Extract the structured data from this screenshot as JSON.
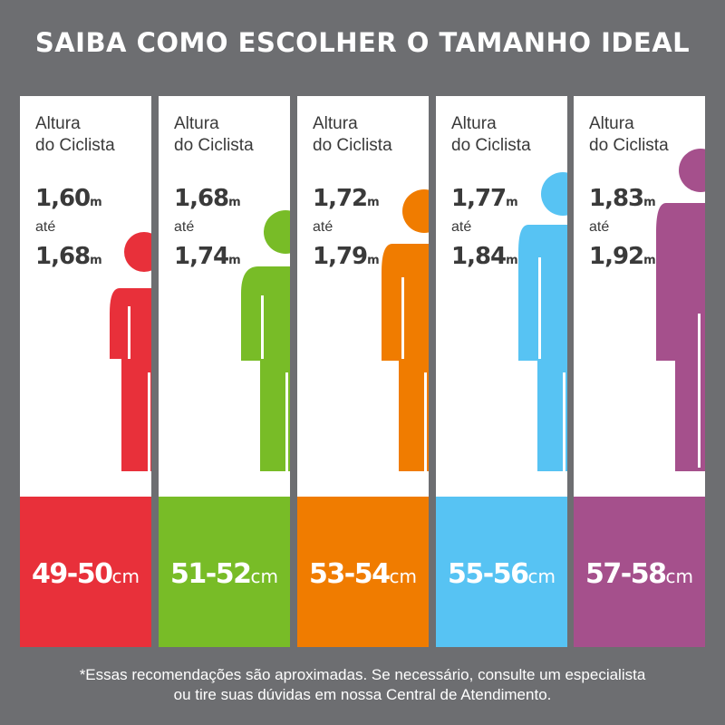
{
  "title": "SAIBA COMO ESCOLHER O TAMANHO IDEAL",
  "label_line1": "Altura",
  "label_line2": "do Ciclista",
  "cards": [
    {
      "min": "1,60",
      "max": "1,68",
      "unit": "m",
      "between": "até",
      "size": "49-50",
      "size_unit": "cm",
      "color": "#e8303a"
    },
    {
      "min": "1,68",
      "max": "1,74",
      "unit": "m",
      "between": "até",
      "size": "51-52",
      "size_unit": "cm",
      "color": "#78bc27"
    },
    {
      "min": "1,72",
      "max": "1,79",
      "unit": "m",
      "between": "até",
      "size": "53-54",
      "size_unit": "cm",
      "color": "#f07c00"
    },
    {
      "min": "1,77",
      "max": "1,84",
      "unit": "m",
      "between": "até",
      "size": "55-56",
      "size_unit": "cm",
      "color": "#57c3f3"
    },
    {
      "min": "1,83",
      "max": "1,92",
      "unit": "m",
      "between": "até",
      "size": "57-58",
      "size_unit": "cm",
      "color": "#a5508c"
    }
  ],
  "footnote_line1": "*Essas recomendações são aproximadas. Se necessário, consulte um especialista",
  "footnote_line2": "ou tire suas dúvidas em nossa Central de Atendimento."
}
